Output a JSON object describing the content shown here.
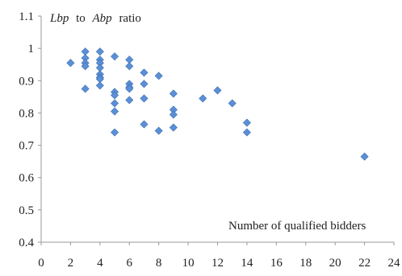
{
  "chart_data": {
    "type": "scatter",
    "ylabel_parts": {
      "var1": "Lbp",
      "mid": "to",
      "var2": "Abp",
      "tail": "ratio"
    },
    "xlabel": "Number of qualified bidders",
    "xlim": [
      0,
      24
    ],
    "ylim": [
      0.4,
      1.1
    ],
    "xticks": [
      "0",
      "2",
      "4",
      "6",
      "8",
      "10",
      "12",
      "14",
      "16",
      "18",
      "20",
      "22",
      "24"
    ],
    "yticks": [
      "0.4",
      "0.5",
      "0.6",
      "0.7",
      "0.8",
      "0.9",
      "1",
      "1.1"
    ],
    "grid": false,
    "marker_color": "#5b8fd6",
    "points": [
      [
        2,
        0.955
      ],
      [
        3,
        0.99
      ],
      [
        3,
        0.97
      ],
      [
        3,
        0.955
      ],
      [
        3,
        0.945
      ],
      [
        3,
        0.875
      ],
      [
        4,
        0.99
      ],
      [
        4,
        0.965
      ],
      [
        4,
        0.955
      ],
      [
        4,
        0.94
      ],
      [
        4,
        0.92
      ],
      [
        4,
        0.91
      ],
      [
        4,
        0.905
      ],
      [
        4,
        0.885
      ],
      [
        5,
        0.975
      ],
      [
        5,
        0.865
      ],
      [
        5,
        0.855
      ],
      [
        5,
        0.83
      ],
      [
        5,
        0.805
      ],
      [
        5,
        0.74
      ],
      [
        6,
        0.965
      ],
      [
        6,
        0.945
      ],
      [
        6,
        0.89
      ],
      [
        6,
        0.88
      ],
      [
        6,
        0.875
      ],
      [
        6,
        0.84
      ],
      [
        7,
        0.925
      ],
      [
        7,
        0.89
      ],
      [
        7,
        0.845
      ],
      [
        7,
        0.765
      ],
      [
        8,
        0.915
      ],
      [
        8,
        0.745
      ],
      [
        9,
        0.86
      ],
      [
        9,
        0.81
      ],
      [
        9,
        0.795
      ],
      [
        9,
        0.755
      ],
      [
        11,
        0.845
      ],
      [
        12,
        0.87
      ],
      [
        13,
        0.83
      ],
      [
        14,
        0.77
      ],
      [
        14,
        0.74
      ],
      [
        22,
        0.665
      ]
    ]
  }
}
